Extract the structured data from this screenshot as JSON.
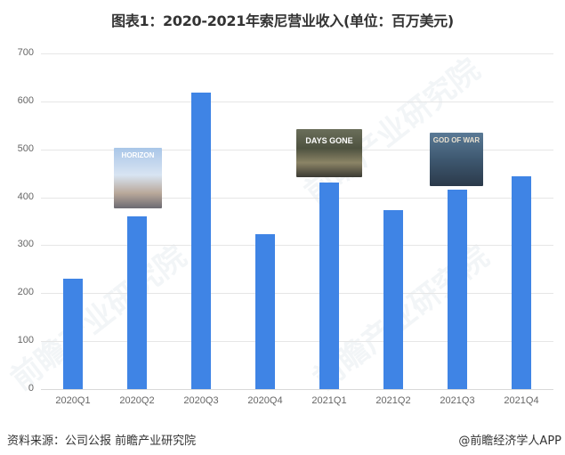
{
  "title": "图表1：2020-2021年索尼营业收入(单位：百万美元)",
  "footer": {
    "source": "资料来源：公司公报 前瞻产业研究院",
    "credit": "@前瞻经济学人APP"
  },
  "watermark": "前瞻产业研究院",
  "thumbnails": [
    {
      "label": "HORIZON",
      "near": "2020Q2"
    },
    {
      "label": "DAYS GONE",
      "near": "2021Q1"
    },
    {
      "label": "GOD OF WAR",
      "near": "2021Q3"
    }
  ],
  "colors": {
    "bar": "#3f84e5",
    "grid": "#e6e6e6",
    "text": "#666666"
  },
  "chart_data": {
    "type": "bar",
    "title": "图表1：2020-2021年索尼营业收入(单位：百万美元)",
    "xlabel": "",
    "ylabel": "",
    "categories": [
      "2020Q1",
      "2020Q2",
      "2020Q3",
      "2020Q4",
      "2021Q1",
      "2021Q2",
      "2021Q3",
      "2021Q4"
    ],
    "values": [
      230,
      360,
      618,
      324,
      430,
      374,
      415,
      444
    ],
    "ylim": [
      0,
      700
    ],
    "yticks": [
      0,
      100,
      200,
      300,
      400,
      500,
      600,
      700
    ],
    "grid": true,
    "legend": null,
    "annotations": [
      "Horizon Zero Dawn cover near 2020Q2",
      "Days Gone cover near 2021Q1",
      "God of War cover near 2021Q3"
    ]
  }
}
